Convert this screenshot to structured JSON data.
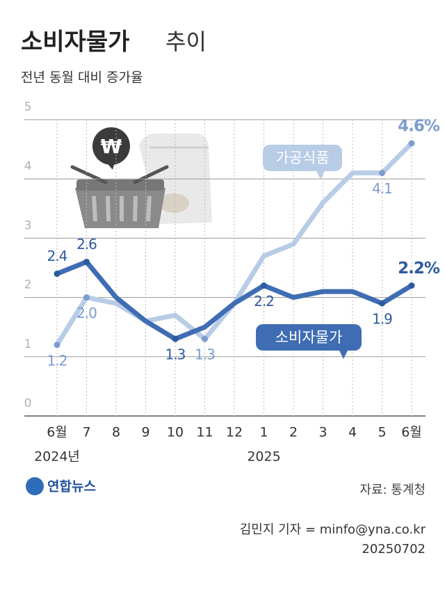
{
  "chart_data": {
    "type": "line",
    "title": "소비자물가",
    "title_suffix": "추이",
    "subtitle": "전년 동월 대비 증가율",
    "categories": [
      "6월",
      "7",
      "8",
      "9",
      "10",
      "11",
      "12",
      "1",
      "2",
      "3",
      "4",
      "5",
      "6월"
    ],
    "year_labels": [
      "2024년",
      "2025"
    ],
    "ylim": [
      0,
      5
    ],
    "yticks": [
      0,
      1,
      2,
      3,
      4,
      5
    ],
    "grid": true,
    "series": [
      {
        "name": "가공식품",
        "color": "#b9cce6",
        "label_color": "#7b9ccf",
        "values": [
          1.2,
          2.0,
          1.9,
          1.6,
          1.7,
          1.3,
          1.9,
          2.7,
          2.9,
          3.6,
          4.1,
          4.1,
          4.6
        ],
        "value_labels": [
          "1.2",
          "2.0",
          null,
          null,
          null,
          "1.3",
          null,
          null,
          null,
          null,
          null,
          "4.1",
          "4.6%"
        ]
      },
      {
        "name": "소비자물가",
        "color": "#3f6db4",
        "label_color": "#2c5a9f",
        "values": [
          2.4,
          2.6,
          2.0,
          1.6,
          1.3,
          1.5,
          1.9,
          2.2,
          2.0,
          2.1,
          2.1,
          1.9,
          2.2
        ],
        "value_labels": [
          "2.4",
          "2.6",
          null,
          null,
          "1.3",
          null,
          null,
          "2.2",
          null,
          null,
          null,
          "1.9",
          "2.2%"
        ]
      }
    ]
  },
  "footer": {
    "logo": "연합뉴스",
    "source": "자료: 통계청",
    "byline": "김민지 기자 = minfo@yna.co.kr",
    "date": "20250702"
  }
}
